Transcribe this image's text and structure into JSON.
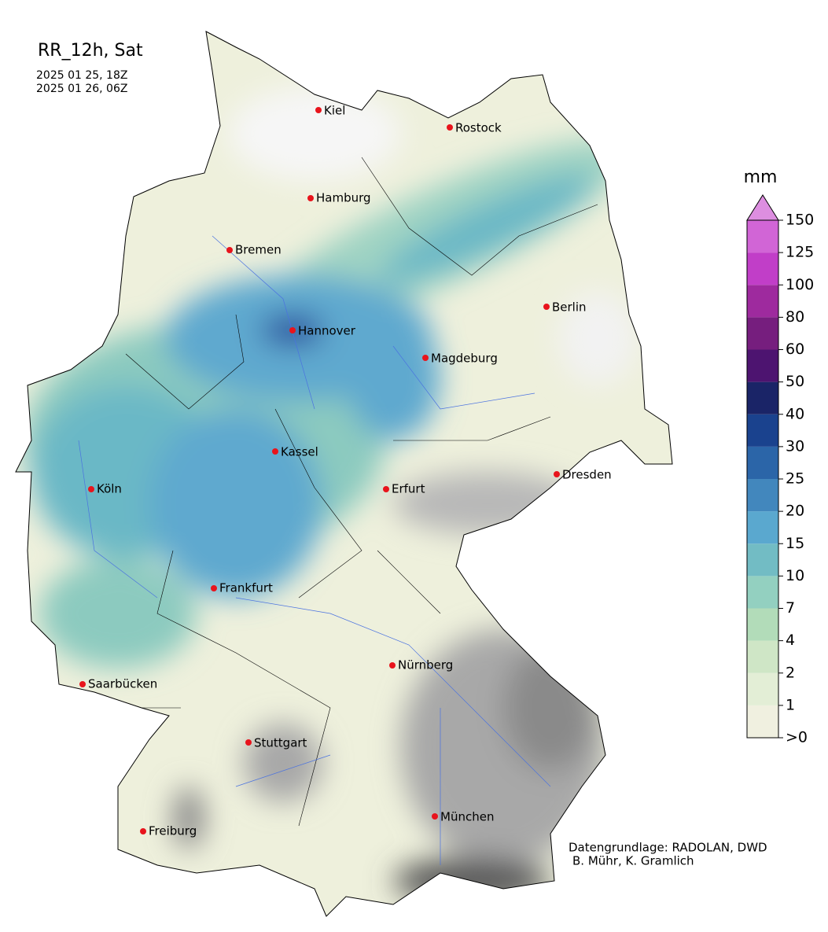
{
  "header": {
    "title": "RR_12h, Sat",
    "dates": [
      "2025 01 25, 18Z",
      "2025 01 26, 06Z"
    ]
  },
  "cities": [
    "Kiel",
    "Rostock",
    "Hamburg",
    "Bremen",
    "Berlin",
    "Hannover",
    "Magdeburg",
    "Kassel",
    "Dresden",
    "Köln",
    "Erfurt",
    "Frankfurt",
    "Nürnberg",
    "Saarbücken",
    "Stuttgart",
    "München",
    "Freiburg"
  ],
  "colorbar": {
    "unit": "mm",
    "ticks": [
      {
        "value": 0,
        "label": ">0"
      },
      1,
      2,
      4,
      7,
      10,
      15,
      20,
      25,
      30,
      40,
      50,
      60,
      80,
      100,
      125,
      150
    ],
    "colors": [
      "#f0f0e0",
      "#e3eed6",
      "#cfe6c6",
      "#b2dcb9",
      "#93d0c0",
      "#72bcc4",
      "#5aa8cf",
      "#4287bd",
      "#2b65a8",
      "#1a428e",
      "#1a2467",
      "#4d1470",
      "#761e7e",
      "#9e2a9e",
      "#c13ec8",
      "#d165d6"
    ],
    "extend_color": "#dd8ee0"
  },
  "credits": [
    "Datengrundlage: RADOLAN, DWD",
    "B. Mühr, K. Gramlich"
  ]
}
